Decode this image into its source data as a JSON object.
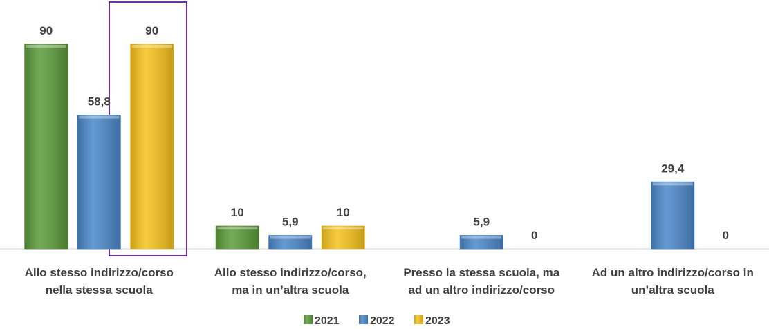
{
  "chart_data": {
    "type": "bar",
    "categories": [
      "Allo stesso indirizzo/corso\nnella stessa scuola",
      "Allo stesso indirizzo/corso,\nma in un’altra scuola",
      "Presso la stessa scuola, ma\nad un altro indirizzo/corso",
      "Ad un altro indirizzo/corso in\nun’altra scuola"
    ],
    "series": [
      {
        "name": "2021",
        "color": "#5b9b3a",
        "values": [
          90,
          10,
          null,
          null
        ],
        "value_labels": [
          "90",
          "10",
          null,
          null
        ]
      },
      {
        "name": "2022",
        "color": "#4a87c9",
        "values": [
          58.8,
          5.9,
          5.9,
          29.4
        ],
        "value_labels": [
          "58,8",
          "5,9",
          "5,9",
          "29,4"
        ]
      },
      {
        "name": "2023",
        "color": "#f6c21c",
        "values": [
          90,
          10,
          0,
          0
        ],
        "value_labels": [
          "90",
          "10",
          "0",
          "0"
        ]
      }
    ],
    "legend": "bottom"
  }
}
